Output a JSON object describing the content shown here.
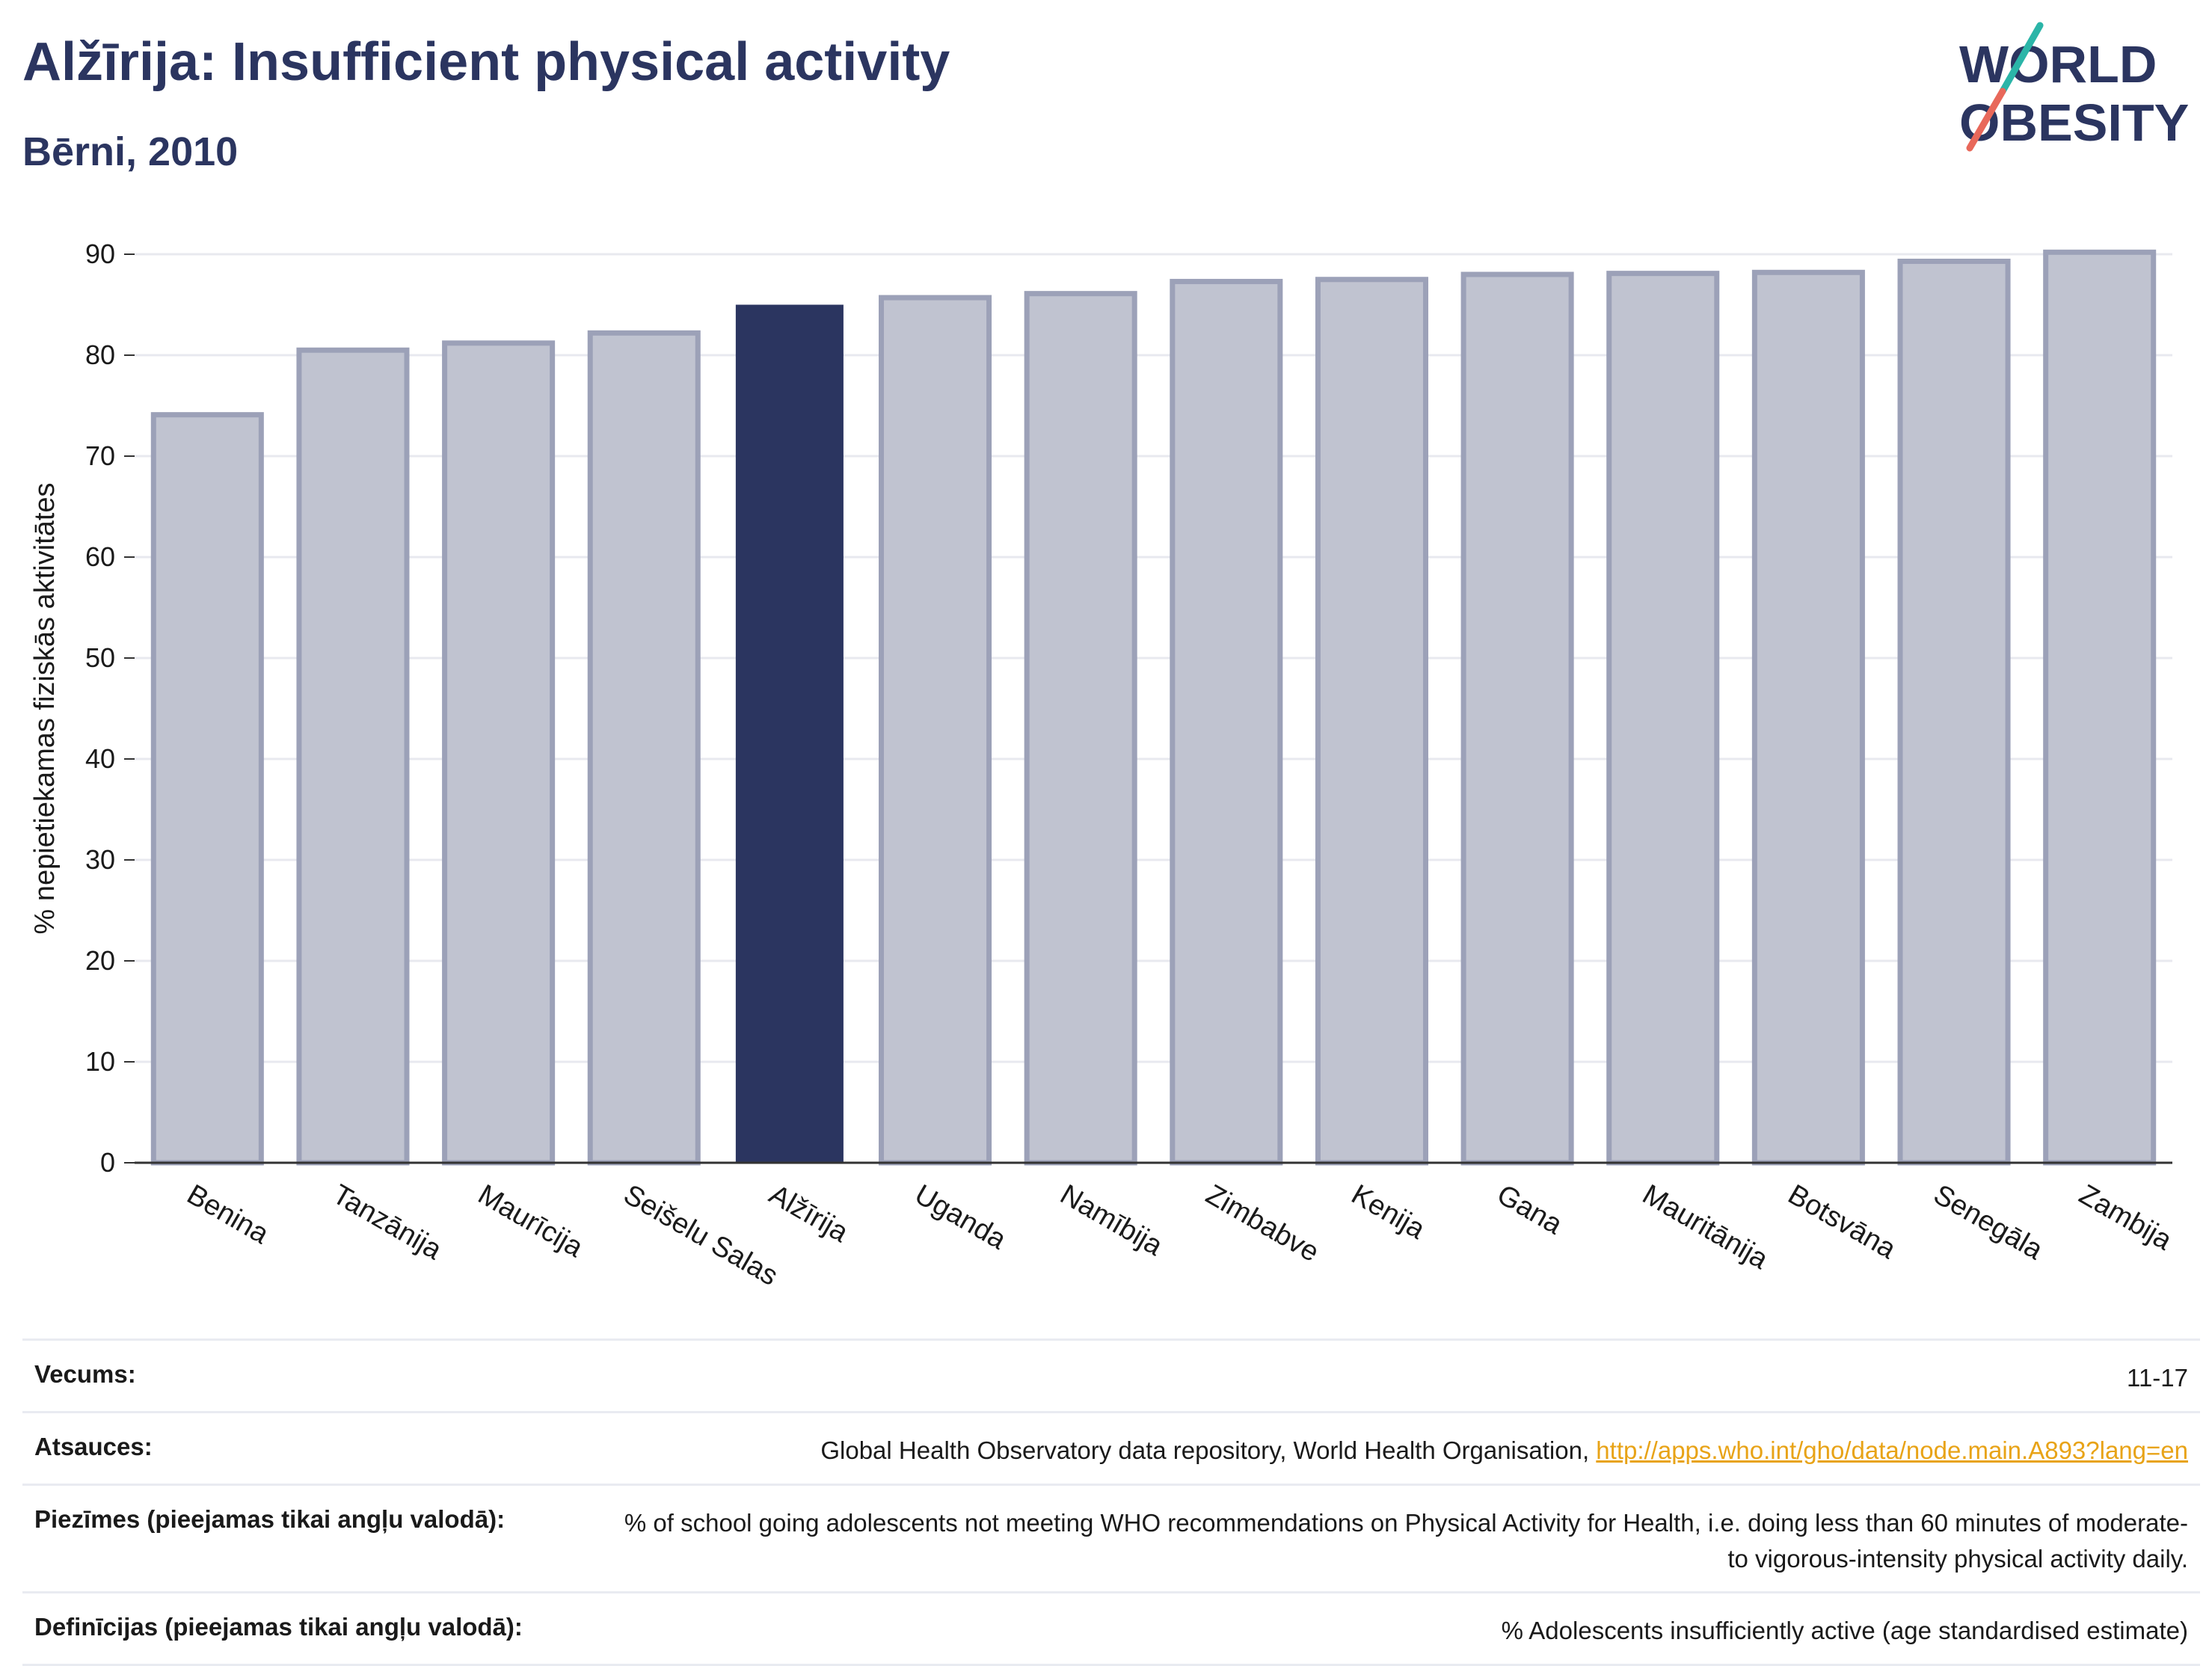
{
  "header": {
    "title": "Alžīrija: Insufficient physical activity",
    "subtitle": "Bērni, 2010"
  },
  "logo": {
    "line1": "WORLD",
    "line2": "OBESITY",
    "accent_teal": "#2bb5a8",
    "accent_red": "#e8685a",
    "text_color": "#2b3560"
  },
  "chart_data": {
    "type": "bar",
    "ylabel": "% nepietiekamas fiziskās aktivitātes",
    "ylim": [
      0,
      90
    ],
    "yticks": [
      0,
      10,
      20,
      30,
      40,
      50,
      60,
      70,
      80,
      90
    ],
    "grid": true,
    "categories": [
      "Benina",
      "Tanzānija",
      "Maurīcija",
      "Seišelu Salas",
      "Alžīrija",
      "Uganda",
      "Namībija",
      "Zimbabve",
      "Kenija",
      "Gana",
      "Mauritānija",
      "Botsvāna",
      "Senegāla",
      "Zambija"
    ],
    "values": [
      74.1,
      80.5,
      81.2,
      82.2,
      85.0,
      85.7,
      86.1,
      87.3,
      87.5,
      88.0,
      88.1,
      88.2,
      89.3,
      90.2
    ],
    "highlight": "Alžīrija",
    "colors": {
      "bar": "#c0c3d0",
      "bar_border": "#9ca1b8",
      "highlight": "#2b3560",
      "grid": "#e8e9ef",
      "axis": "#333333"
    }
  },
  "info": {
    "age_label": "Vecums:",
    "age_value": "11-17",
    "sources_label": "Atsauces:",
    "sources_text": "Global Health Observatory data repository, World Health Organisation, ",
    "sources_link": "http://apps.who.int/gho/data/node.main.A893?lang=en",
    "notes_label": "Piezīmes (pieejamas tikai angļu valodā):",
    "notes_value": "% of school going adolescents not meeting WHO recommendations on Physical Activity for Health, i.e. doing less than 60 minutes of moderate- to vigorous-intensity physical activity daily.",
    "definitions_label": "Definīcijas (pieejamas tikai angļu valodā):",
    "definitions_value": "% Adolescents insufficiently active (age standardised estimate)"
  }
}
